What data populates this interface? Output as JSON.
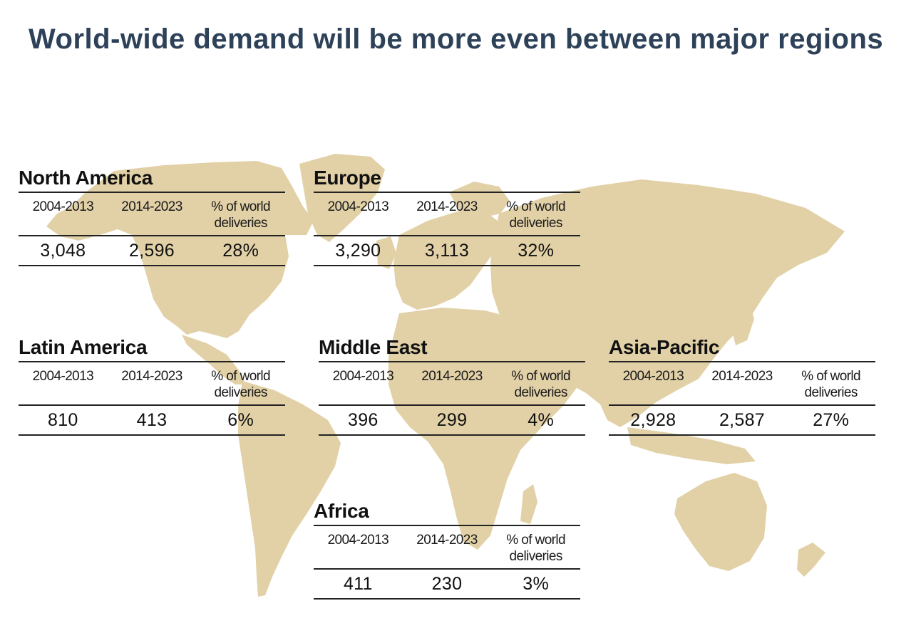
{
  "title": "World-wide demand will be more even between major regions",
  "colors": {
    "title": "#2d4159",
    "land": "#e2d1a7",
    "text": "#111111",
    "rule": "#222222"
  },
  "chart_data": {
    "type": "table",
    "columns": [
      "2004-2013",
      "2014-2023",
      "% of world deliveries"
    ],
    "regions": [
      {
        "name": "North America",
        "values": [
          "3,048",
          "2,596",
          "28%"
        ]
      },
      {
        "name": "Europe",
        "values": [
          "3,290",
          "3,113",
          "32%"
        ]
      },
      {
        "name": "Latin America",
        "values": [
          "810",
          "413",
          "6%"
        ]
      },
      {
        "name": "Middle East",
        "values": [
          "396",
          "299",
          "4%"
        ]
      },
      {
        "name": "Asia-Pacific",
        "values": [
          "2,928",
          "2,587",
          "27%"
        ]
      },
      {
        "name": "Africa",
        "values": [
          "411",
          "230",
          "3%"
        ]
      }
    ]
  },
  "header": {
    "col1": "2004-2013",
    "col2": "2014-2023",
    "col3_line1": "% of world",
    "col3_line2": "deliveries"
  }
}
